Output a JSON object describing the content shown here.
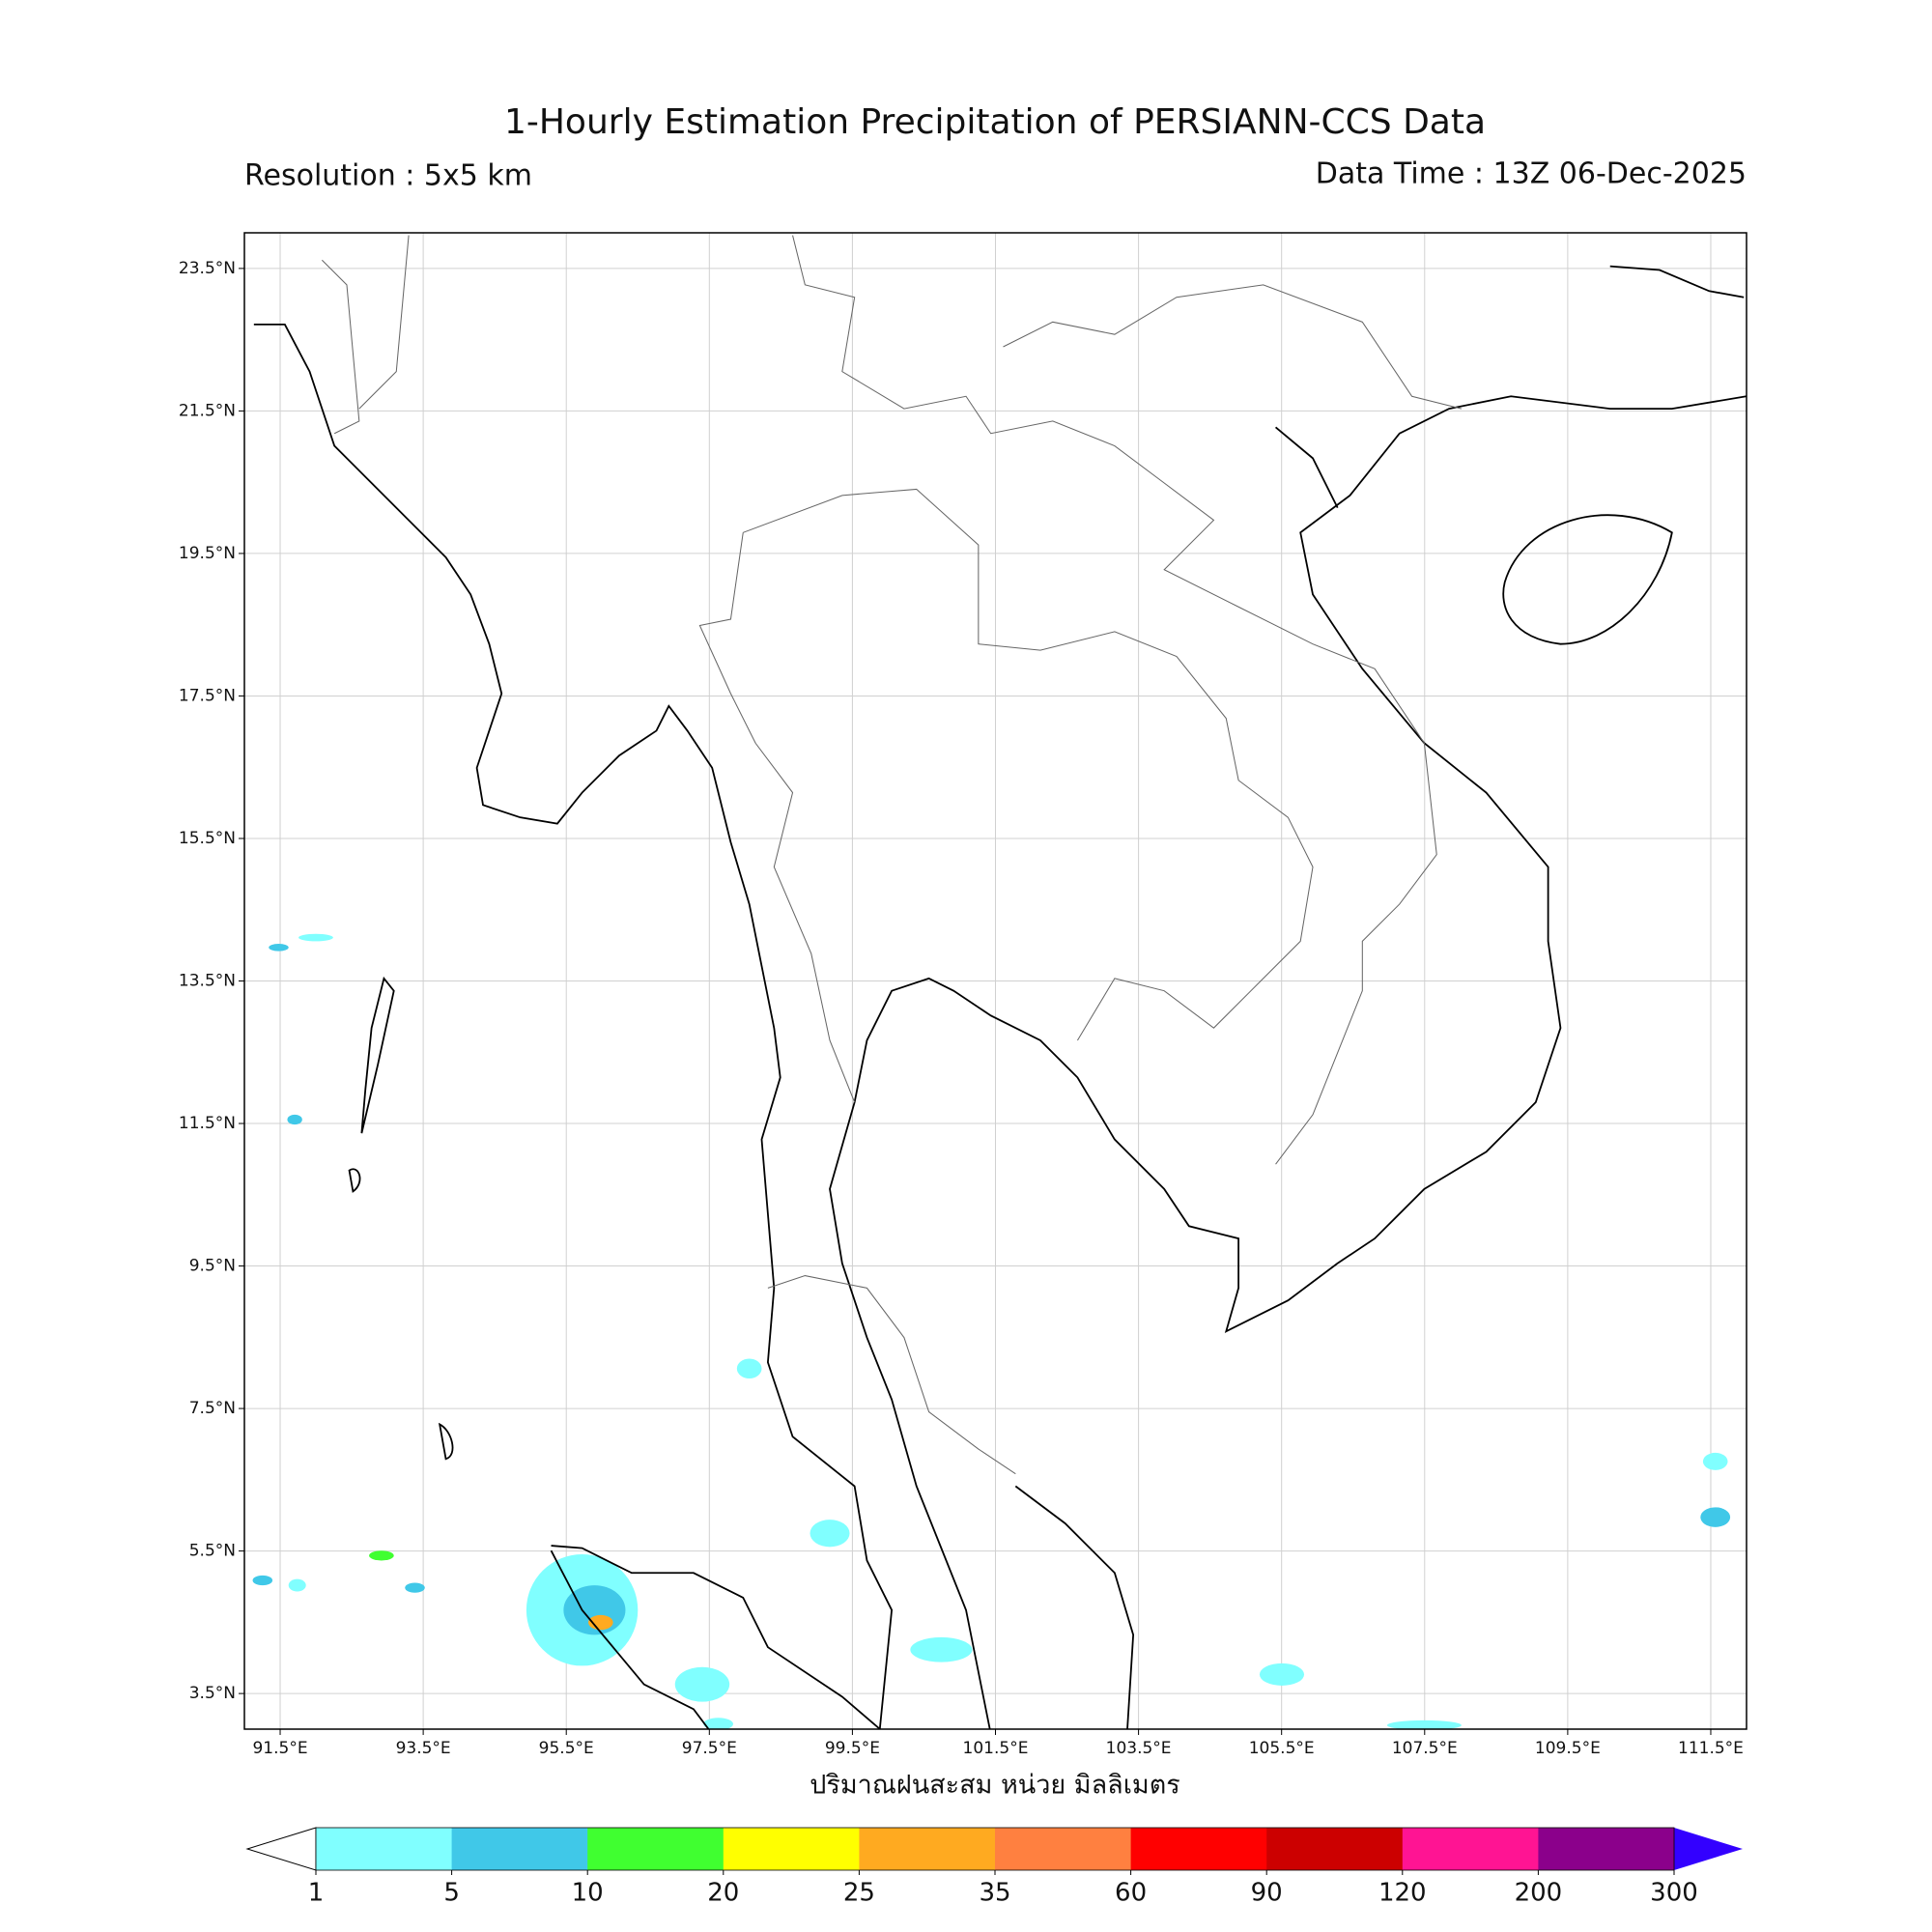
{
  "header": {
    "title": "1-Hourly Estimation Precipitation of PERSIANN-CCS Data",
    "resolution": "Resolution : 5x5 km",
    "data_time": "Data Time : 13Z 06-Dec-2025"
  },
  "map": {
    "xlim": [
      91,
      112
    ],
    "ylim": [
      3,
      24
    ],
    "xticks": [
      {
        "value": 91.5,
        "label": "91.5°E"
      },
      {
        "value": 93.5,
        "label": "93.5°E"
      },
      {
        "value": 95.5,
        "label": "95.5°E"
      },
      {
        "value": 97.5,
        "label": "97.5°E"
      },
      {
        "value": 99.5,
        "label": "99.5°E"
      },
      {
        "value": 101.5,
        "label": "101.5°E"
      },
      {
        "value": 103.5,
        "label": "103.5°E"
      },
      {
        "value": 105.5,
        "label": "105.5°E"
      },
      {
        "value": 107.5,
        "label": "107.5°E"
      },
      {
        "value": 109.5,
        "label": "109.5°E"
      },
      {
        "value": 111.5,
        "label": "111.5°E"
      }
    ],
    "yticks": [
      {
        "value": 23.5,
        "label": "23.5°N"
      },
      {
        "value": 21.5,
        "label": "21.5°N"
      },
      {
        "value": 19.5,
        "label": "19.5°N"
      },
      {
        "value": 17.5,
        "label": "17.5°N"
      },
      {
        "value": 15.5,
        "label": "15.5°N"
      },
      {
        "value": 13.5,
        "label": "13.5°N"
      },
      {
        "value": 11.5,
        "label": "11.5°N"
      },
      {
        "value": 9.5,
        "label": "9.5°N"
      },
      {
        "value": 7.5,
        "label": "7.5°N"
      },
      {
        "value": 5.5,
        "label": "5.5°N"
      },
      {
        "value": 3.5,
        "label": "3.5°N"
      }
    ],
    "grid": true,
    "xlabel": "ปริมาณฝนสะสม หน่วย มิลลิเมตร"
  },
  "colorbar": {
    "levels": [
      1,
      5,
      10,
      20,
      25,
      35,
      60,
      90,
      120,
      200,
      300
    ],
    "colors": [
      "#80ffff",
      "#40c8e8",
      "#40ff30",
      "#ffff00",
      "#ffaa20",
      "#ff8040",
      "#ff0000",
      "#cc0000",
      "#ff1493",
      "#8b008b"
    ],
    "under_color": "#ffffff",
    "over_color": "#3300ff"
  }
}
